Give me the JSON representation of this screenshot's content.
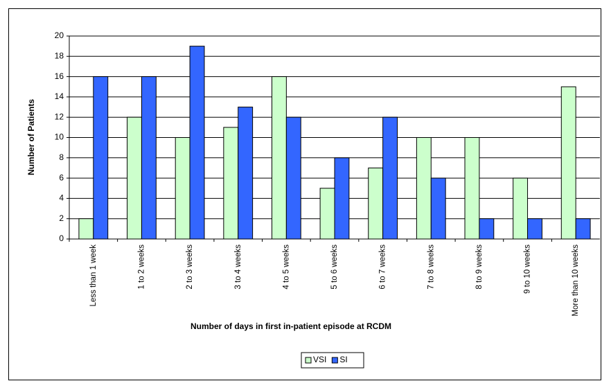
{
  "chart_data": {
    "type": "bar",
    "categories": [
      "Less than 1 week",
      "1 to 2 weeks",
      "2 to 3 weeks",
      "3 to 4 weeks",
      "4 to 5 weeks",
      "5 to 6 weeks",
      "6 to 7 weeks",
      "7 to 8 weeks",
      "8 to 9 weeks",
      "9 to 10 weeks",
      "More than 10 weeks"
    ],
    "series": [
      {
        "name": "VSI",
        "color": "#ccffcc",
        "values": [
          2,
          12,
          10,
          11,
          16,
          5,
          7,
          10,
          10,
          6,
          15
        ]
      },
      {
        "name": "SI",
        "color": "#3366ff",
        "values": [
          16,
          16,
          19,
          13,
          12,
          8,
          12,
          6,
          2,
          2,
          2
        ]
      }
    ],
    "x_label": "Number of days in first in-patient episode at RCDM",
    "y_label": "Number of Patients",
    "ylim": [
      0,
      20
    ],
    "yticks": [
      0,
      2,
      4,
      6,
      8,
      10,
      12,
      14,
      16,
      18,
      20
    ],
    "grid": true,
    "legend": "bottom"
  }
}
